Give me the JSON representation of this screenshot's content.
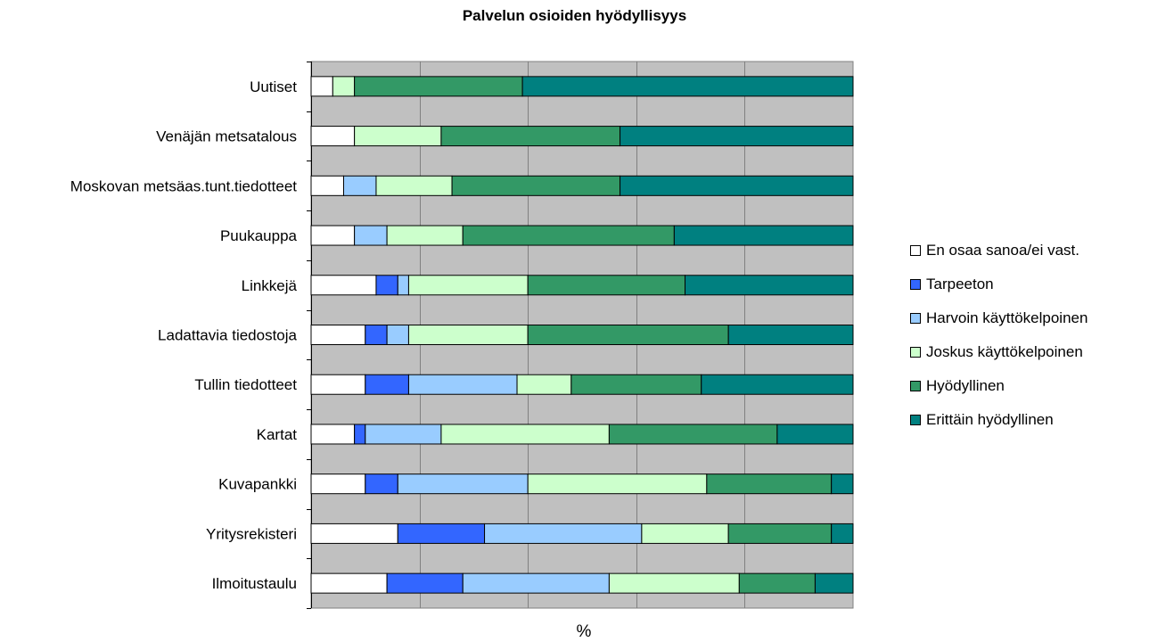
{
  "chart_data": {
    "type": "bar",
    "orientation": "horizontal",
    "stacked": "percent",
    "title": "Palvelun osioiden hyödyllisyys",
    "xlabel": "%",
    "ylabel": "",
    "xlim": [
      0,
      100
    ],
    "grid": true,
    "legend_position": "right",
    "categories": [
      "Uutiset",
      "Venäjän metsatalous",
      "Moskovan metsäas.tunt.tiedotteet",
      "Puukauppa",
      "Linkkejä",
      "Ladattavia tiedostoja",
      "Tullin tiedotteet",
      "Kartat",
      "Kuvapankki",
      "Yritysrekisteri",
      "Ilmoitustaulu"
    ],
    "series": [
      {
        "name": "En osaa sanoa/ei vast.",
        "color": "#FFFFFF",
        "values": [
          4,
          8,
          6,
          8,
          12,
          10,
          10,
          8,
          10,
          16,
          14
        ]
      },
      {
        "name": "Tarpeeton",
        "color": "#3366FF",
        "values": [
          0,
          0,
          0,
          0,
          4,
          4,
          8,
          2,
          6,
          16,
          14
        ]
      },
      {
        "name": "Harvoin käyttökelpoinen",
        "color": "#99CCFF",
        "values": [
          0,
          0,
          6,
          6,
          2,
          4,
          20,
          14,
          24,
          29,
          27
        ]
      },
      {
        "name": "Joskus käyttökelpoinen",
        "color": "#CCFFCC",
        "values": [
          4,
          16,
          14,
          14,
          22,
          22,
          10,
          31,
          33,
          16,
          24
        ]
      },
      {
        "name": "Hyödyllinen",
        "color": "#339966",
        "values": [
          31,
          33,
          31,
          39,
          29,
          37,
          24,
          31,
          23,
          19,
          14
        ]
      },
      {
        "name": "Erittäin hyödyllinen",
        "color": "#008080",
        "values": [
          61,
          43,
          43,
          33,
          31,
          23,
          28,
          14,
          4,
          4,
          7
        ]
      }
    ]
  }
}
